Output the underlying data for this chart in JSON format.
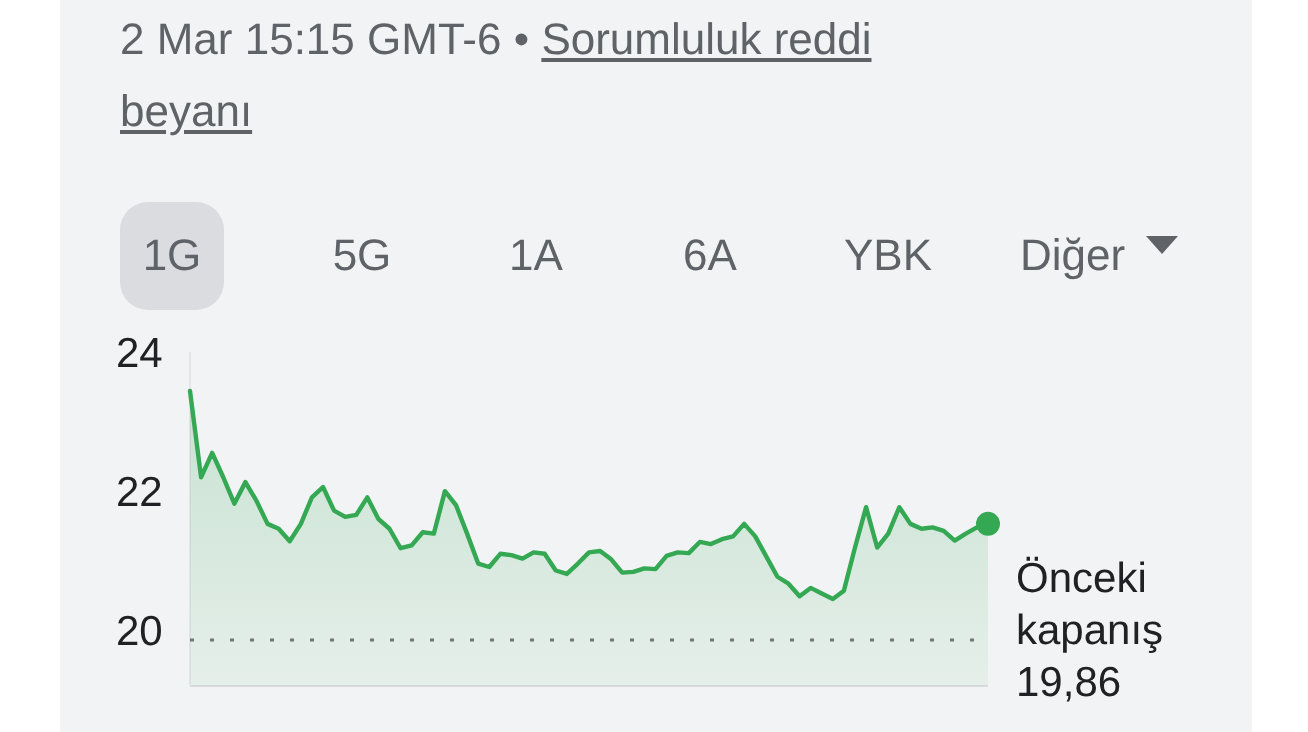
{
  "chart_data": {
    "type": "area",
    "subtitle": "2 Mar 15:15 GMT-6 •",
    "annotations": [
      "Sorumluluk reddi beyanı",
      "1G",
      "5G",
      "1A",
      "6A",
      "YBK",
      "Diğer"
    ],
    "categories": [
      null,
      null,
      null,
      null,
      null,
      null,
      null,
      null,
      null,
      null,
      null,
      null,
      null,
      null,
      null,
      null,
      null,
      null,
      null,
      null,
      null,
      null,
      null,
      null,
      null,
      null,
      null,
      null,
      null,
      null,
      null,
      null,
      null,
      null,
      null,
      null,
      null,
      null,
      null,
      null,
      null,
      null,
      null,
      null,
      null,
      null,
      null,
      null,
      null,
      null,
      null,
      null,
      null,
      null,
      null,
      null,
      null,
      null,
      null,
      null,
      null,
      null,
      null,
      null,
      null,
      null,
      null,
      null,
      null,
      null,
      null,
      null,
      null
    ],
    "series": [
      {
        "color": "#34a853",
        "values": [
          23.44,
          22.2,
          22.55,
          22.2,
          21.82,
          22.13,
          21.86,
          21.53,
          21.46,
          21.28,
          21.53,
          21.91,
          22.06,
          21.72,
          21.63,
          21.66,
          21.91,
          21.6,
          21.46,
          21.18,
          21.22,
          21.41,
          21.39,
          22.0,
          21.8,
          21.39,
          20.96,
          20.91,
          21.1,
          21.08,
          21.03,
          21.12,
          21.1,
          20.86,
          20.81,
          20.96,
          21.12,
          21.14,
          21.02,
          20.83,
          20.84,
          20.89,
          20.88,
          21.07,
          21.12,
          21.11,
          21.27,
          21.24,
          21.31,
          21.35,
          21.53,
          21.35,
          21.06,
          20.77,
          20.67,
          20.49,
          20.61,
          20.53,
          20.45,
          20.57,
          21.19,
          21.77,
          21.19,
          21.39,
          21.77,
          21.53,
          21.46,
          21.48,
          21.43,
          21.29,
          21.39,
          21.48,
          21.53
        ]
      }
    ],
    "ylim": [
      19.2,
      24
    ],
    "yticks": [
      20,
      22,
      24
    ],
    "tick_labels": "y",
    "grid": false,
    "ref_lines": [
      {
        "axis": "y",
        "value": 19.86,
        "label": "Önceki kapanış 19,86",
        "color": "#70757a",
        "line_style": "dotted"
      }
    ]
  }
}
